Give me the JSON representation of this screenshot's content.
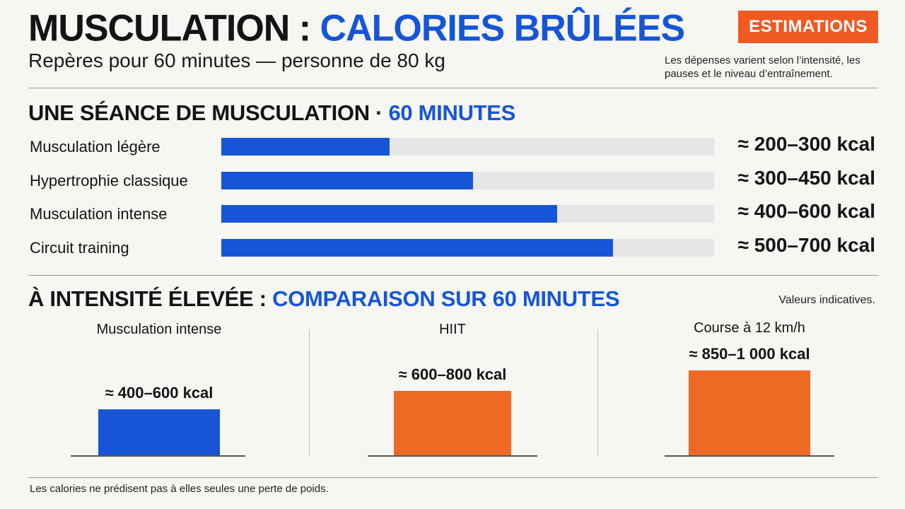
{
  "header": {
    "title_main": "MUSCULATION :",
    "title_accent": "CALORIES BRÛLÉES",
    "subtitle": "Repères pour 60 minutes — personne de 80 kg",
    "badge": "ESTIMATIONS",
    "note": "Les dépenses varient selon l’intensité, les pauses et le niveau d’entraînement."
  },
  "section1": {
    "title_main": "UNE SÉANCE DE MUSCULATION ·",
    "title_accent": "60 MINUTES"
  },
  "section2": {
    "title_main": "À INTENSITÉ ÉLEVÉE :",
    "title_accent": "COMPARAISON SUR 60 MINUTES",
    "note": "Valeurs indicatives."
  },
  "footer": "Les calories ne prédisent pas à elles seules une perte de poids.",
  "colors": {
    "blue": "#1656d6",
    "orange": "#ee6a24",
    "track": "#e6e6e6",
    "badge": "#ee5a22"
  },
  "chart_data": [
    {
      "type": "bar",
      "orientation": "horizontal",
      "categories": [
        "Musculation légère",
        "Hypertrophie classique",
        "Musculation intense",
        "Circuit training"
      ],
      "values": [
        300,
        450,
        600,
        700
      ],
      "ranges": [
        [
          200,
          300
        ],
        [
          300,
          450
        ],
        [
          400,
          600
        ],
        [
          500,
          700
        ]
      ],
      "value_labels": [
        "≈ 200–300 kcal",
        "≈ 300–450 kcal",
        "≈ 400–600 kcal",
        "≈ 500–700 kcal"
      ],
      "xlim": [
        0,
        880
      ],
      "grid": false
    },
    {
      "type": "bar",
      "orientation": "vertical",
      "categories": [
        "Musculation intense",
        "HIIT",
        "Course à 12 km/h"
      ],
      "values": [
        500,
        700,
        925
      ],
      "ranges": [
        [
          400,
          600
        ],
        [
          600,
          800
        ],
        [
          850,
          1000
        ]
      ],
      "value_labels": [
        "≈ 400–600 kcal",
        "≈ 600–800 kcal",
        "≈ 850–1 000 kcal"
      ],
      "colors": [
        "#1656d6",
        "#ee6a24",
        "#ee6a24"
      ],
      "ylim": [
        0,
        1000
      ],
      "grid": false
    }
  ]
}
